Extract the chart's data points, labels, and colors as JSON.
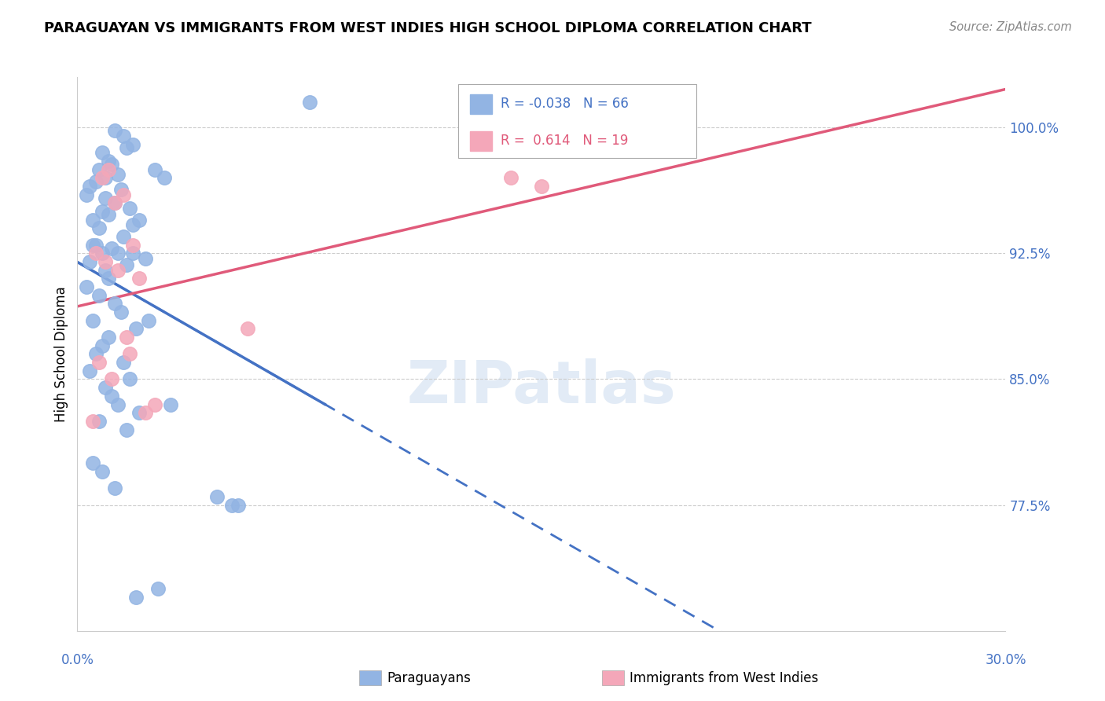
{
  "title": "PARAGUAYAN VS IMMIGRANTS FROM WEST INDIES HIGH SCHOOL DIPLOMA CORRELATION CHART",
  "source": "Source: ZipAtlas.com",
  "ylabel": "High School Diploma",
  "xlim": [
    0.0,
    30.0
  ],
  "ylim": [
    70.0,
    103.0
  ],
  "legend_r_blue": "-0.038",
  "legend_n_blue": "66",
  "legend_r_pink": "0.614",
  "legend_n_pink": "19",
  "blue_color": "#92b4e3",
  "pink_color": "#f4a7b9",
  "blue_line_color": "#4472c4",
  "pink_line_color": "#e05a7a",
  "ytick_positions": [
    77.5,
    85.0,
    92.5,
    100.0
  ],
  "ytick_labels": [
    "77.5%",
    "85.0%",
    "92.5%",
    "100.0%"
  ],
  "blue_scatter_x": [
    0.5,
    1.5,
    1.8,
    1.2,
    0.8,
    1.0,
    0.7,
    0.3,
    0.9,
    1.1,
    1.6,
    1.3,
    2.5,
    2.8,
    0.4,
    0.6,
    1.4,
    0.8,
    1.2,
    0.9,
    1.7,
    1.0,
    0.5,
    0.7,
    1.8,
    2.0,
    1.5,
    0.6,
    0.8,
    1.1,
    1.3,
    0.4,
    1.6,
    2.2,
    0.9,
    1.0,
    0.3,
    0.7,
    1.2,
    1.4,
    7.5,
    0.5,
    1.9,
    2.3,
    1.0,
    0.8,
    0.6,
    1.5,
    0.4,
    1.7,
    0.9,
    1.1,
    1.3,
    2.0,
    0.7,
    1.6,
    0.5,
    0.8,
    3.0,
    1.2,
    4.5,
    5.0,
    5.2,
    1.9,
    2.6,
    1.8
  ],
  "blue_scatter_y": [
    93.0,
    99.5,
    99.0,
    99.8,
    98.5,
    98.0,
    97.5,
    96.0,
    97.0,
    97.8,
    98.8,
    97.2,
    97.5,
    97.0,
    96.5,
    96.8,
    96.3,
    95.0,
    95.5,
    95.8,
    95.2,
    94.8,
    94.5,
    94.0,
    94.2,
    94.5,
    93.5,
    93.0,
    92.5,
    92.8,
    92.5,
    92.0,
    91.8,
    92.2,
    91.5,
    91.0,
    90.5,
    90.0,
    89.5,
    89.0,
    101.5,
    88.5,
    88.0,
    88.5,
    87.5,
    87.0,
    86.5,
    86.0,
    85.5,
    85.0,
    84.5,
    84.0,
    83.5,
    83.0,
    82.5,
    82.0,
    80.0,
    79.5,
    83.5,
    78.5,
    78.0,
    77.5,
    77.5,
    72.0,
    72.5,
    92.5
  ],
  "pink_scatter_x": [
    1.0,
    0.8,
    1.5,
    1.2,
    1.8,
    0.6,
    0.9,
    1.3,
    2.0,
    1.1,
    1.6,
    0.7,
    2.5,
    14.0,
    15.0,
    5.5,
    2.2,
    0.5,
    1.7
  ],
  "pink_scatter_y": [
    97.5,
    97.0,
    96.0,
    95.5,
    93.0,
    92.5,
    92.0,
    91.5,
    91.0,
    85.0,
    87.5,
    86.0,
    83.5,
    97.0,
    96.5,
    88.0,
    83.0,
    82.5,
    86.5
  ]
}
